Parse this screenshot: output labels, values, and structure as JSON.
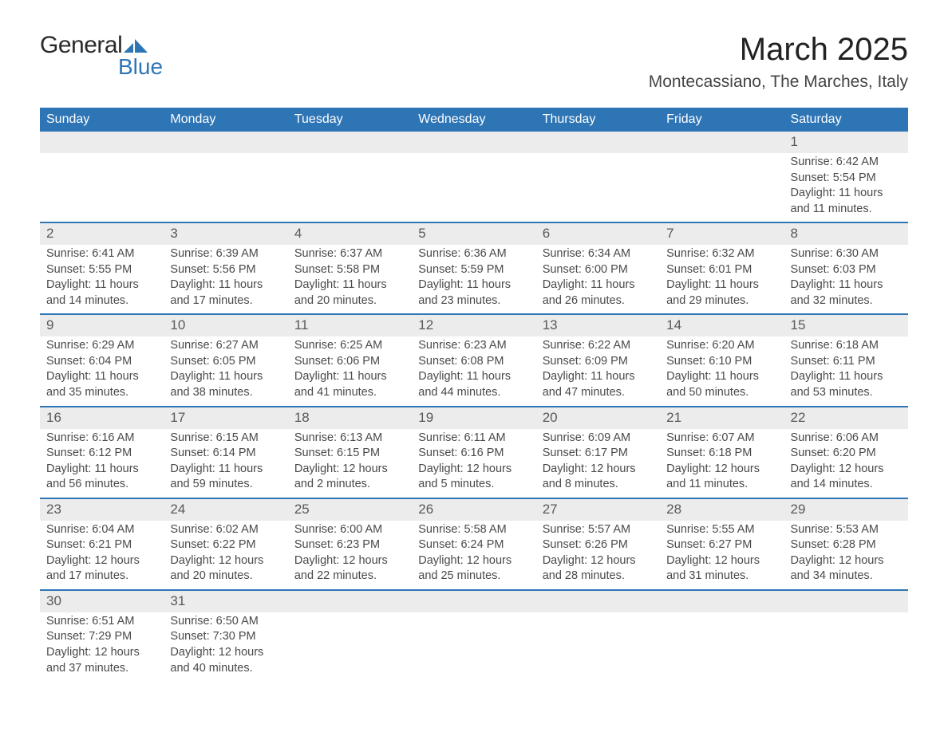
{
  "brand": {
    "word1": "General",
    "word2": "Blue",
    "logo_color": "#2e75b6"
  },
  "title": "March 2025",
  "location": "Montecassiano, The Marches, Italy",
  "colors": {
    "header_bg": "#2e75b6",
    "header_text": "#ffffff",
    "daynum_bg": "#ececec",
    "row_border": "#2e75b6",
    "body_text": "#4a4a4a"
  },
  "day_headers": [
    "Sunday",
    "Monday",
    "Tuesday",
    "Wednesday",
    "Thursday",
    "Friday",
    "Saturday"
  ],
  "weeks": [
    [
      null,
      null,
      null,
      null,
      null,
      null,
      {
        "n": "1",
        "sr": "Sunrise: 6:42 AM",
        "ss": "Sunset: 5:54 PM",
        "dl": "Daylight: 11 hours and 11 minutes."
      }
    ],
    [
      {
        "n": "2",
        "sr": "Sunrise: 6:41 AM",
        "ss": "Sunset: 5:55 PM",
        "dl": "Daylight: 11 hours and 14 minutes."
      },
      {
        "n": "3",
        "sr": "Sunrise: 6:39 AM",
        "ss": "Sunset: 5:56 PM",
        "dl": "Daylight: 11 hours and 17 minutes."
      },
      {
        "n": "4",
        "sr": "Sunrise: 6:37 AM",
        "ss": "Sunset: 5:58 PM",
        "dl": "Daylight: 11 hours and 20 minutes."
      },
      {
        "n": "5",
        "sr": "Sunrise: 6:36 AM",
        "ss": "Sunset: 5:59 PM",
        "dl": "Daylight: 11 hours and 23 minutes."
      },
      {
        "n": "6",
        "sr": "Sunrise: 6:34 AM",
        "ss": "Sunset: 6:00 PM",
        "dl": "Daylight: 11 hours and 26 minutes."
      },
      {
        "n": "7",
        "sr": "Sunrise: 6:32 AM",
        "ss": "Sunset: 6:01 PM",
        "dl": "Daylight: 11 hours and 29 minutes."
      },
      {
        "n": "8",
        "sr": "Sunrise: 6:30 AM",
        "ss": "Sunset: 6:03 PM",
        "dl": "Daylight: 11 hours and 32 minutes."
      }
    ],
    [
      {
        "n": "9",
        "sr": "Sunrise: 6:29 AM",
        "ss": "Sunset: 6:04 PM",
        "dl": "Daylight: 11 hours and 35 minutes."
      },
      {
        "n": "10",
        "sr": "Sunrise: 6:27 AM",
        "ss": "Sunset: 6:05 PM",
        "dl": "Daylight: 11 hours and 38 minutes."
      },
      {
        "n": "11",
        "sr": "Sunrise: 6:25 AM",
        "ss": "Sunset: 6:06 PM",
        "dl": "Daylight: 11 hours and 41 minutes."
      },
      {
        "n": "12",
        "sr": "Sunrise: 6:23 AM",
        "ss": "Sunset: 6:08 PM",
        "dl": "Daylight: 11 hours and 44 minutes."
      },
      {
        "n": "13",
        "sr": "Sunrise: 6:22 AM",
        "ss": "Sunset: 6:09 PM",
        "dl": "Daylight: 11 hours and 47 minutes."
      },
      {
        "n": "14",
        "sr": "Sunrise: 6:20 AM",
        "ss": "Sunset: 6:10 PM",
        "dl": "Daylight: 11 hours and 50 minutes."
      },
      {
        "n": "15",
        "sr": "Sunrise: 6:18 AM",
        "ss": "Sunset: 6:11 PM",
        "dl": "Daylight: 11 hours and 53 minutes."
      }
    ],
    [
      {
        "n": "16",
        "sr": "Sunrise: 6:16 AM",
        "ss": "Sunset: 6:12 PM",
        "dl": "Daylight: 11 hours and 56 minutes."
      },
      {
        "n": "17",
        "sr": "Sunrise: 6:15 AM",
        "ss": "Sunset: 6:14 PM",
        "dl": "Daylight: 11 hours and 59 minutes."
      },
      {
        "n": "18",
        "sr": "Sunrise: 6:13 AM",
        "ss": "Sunset: 6:15 PM",
        "dl": "Daylight: 12 hours and 2 minutes."
      },
      {
        "n": "19",
        "sr": "Sunrise: 6:11 AM",
        "ss": "Sunset: 6:16 PM",
        "dl": "Daylight: 12 hours and 5 minutes."
      },
      {
        "n": "20",
        "sr": "Sunrise: 6:09 AM",
        "ss": "Sunset: 6:17 PM",
        "dl": "Daylight: 12 hours and 8 minutes."
      },
      {
        "n": "21",
        "sr": "Sunrise: 6:07 AM",
        "ss": "Sunset: 6:18 PM",
        "dl": "Daylight: 12 hours and 11 minutes."
      },
      {
        "n": "22",
        "sr": "Sunrise: 6:06 AM",
        "ss": "Sunset: 6:20 PM",
        "dl": "Daylight: 12 hours and 14 minutes."
      }
    ],
    [
      {
        "n": "23",
        "sr": "Sunrise: 6:04 AM",
        "ss": "Sunset: 6:21 PM",
        "dl": "Daylight: 12 hours and 17 minutes."
      },
      {
        "n": "24",
        "sr": "Sunrise: 6:02 AM",
        "ss": "Sunset: 6:22 PM",
        "dl": "Daylight: 12 hours and 20 minutes."
      },
      {
        "n": "25",
        "sr": "Sunrise: 6:00 AM",
        "ss": "Sunset: 6:23 PM",
        "dl": "Daylight: 12 hours and 22 minutes."
      },
      {
        "n": "26",
        "sr": "Sunrise: 5:58 AM",
        "ss": "Sunset: 6:24 PM",
        "dl": "Daylight: 12 hours and 25 minutes."
      },
      {
        "n": "27",
        "sr": "Sunrise: 5:57 AM",
        "ss": "Sunset: 6:26 PM",
        "dl": "Daylight: 12 hours and 28 minutes."
      },
      {
        "n": "28",
        "sr": "Sunrise: 5:55 AM",
        "ss": "Sunset: 6:27 PM",
        "dl": "Daylight: 12 hours and 31 minutes."
      },
      {
        "n": "29",
        "sr": "Sunrise: 5:53 AM",
        "ss": "Sunset: 6:28 PM",
        "dl": "Daylight: 12 hours and 34 minutes."
      }
    ],
    [
      {
        "n": "30",
        "sr": "Sunrise: 6:51 AM",
        "ss": "Sunset: 7:29 PM",
        "dl": "Daylight: 12 hours and 37 minutes."
      },
      {
        "n": "31",
        "sr": "Sunrise: 6:50 AM",
        "ss": "Sunset: 7:30 PM",
        "dl": "Daylight: 12 hours and 40 minutes."
      },
      null,
      null,
      null,
      null,
      null
    ]
  ]
}
